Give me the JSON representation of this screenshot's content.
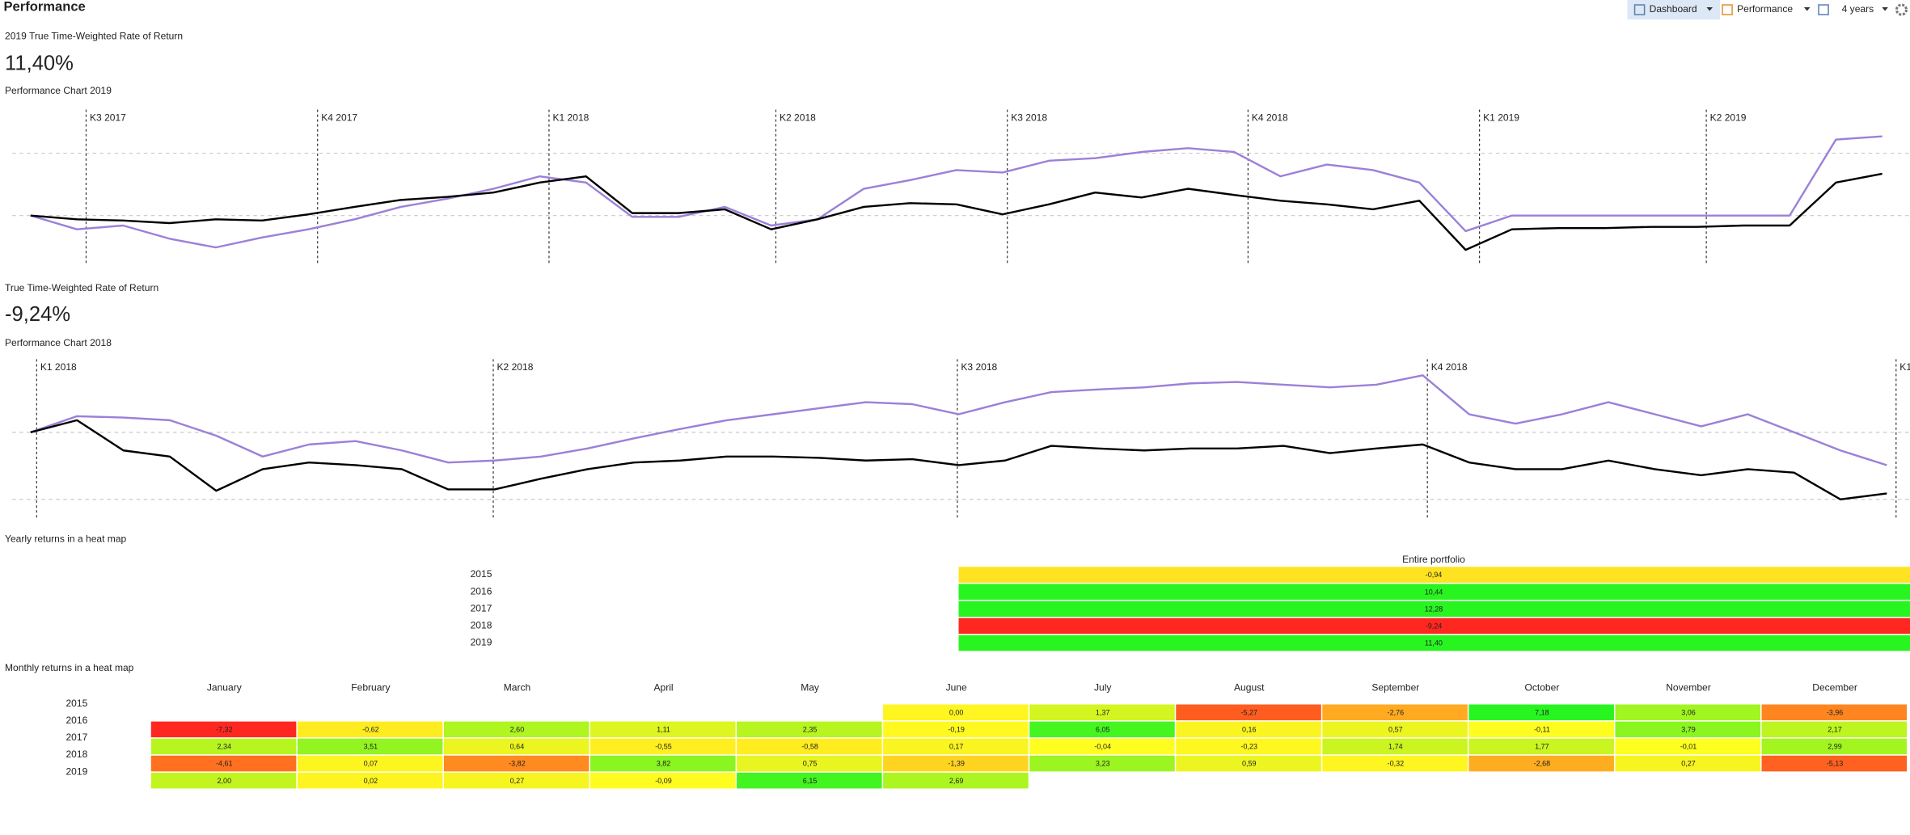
{
  "header": {
    "title": "Performance",
    "toolbar": [
      "Dashboard",
      "Performance",
      "4 years"
    ]
  },
  "summary_2019": {
    "label": "2019 True Time-Weighted Rate of Return",
    "value": "11,40%",
    "color": "#1e8a1e"
  },
  "summary_2018": {
    "label": "True Time-Weighted Rate of Return",
    "value": "-9,24%",
    "color": "#8b1010"
  },
  "chart_data": [
    {
      "type": "line",
      "title": "Performance Chart 2019",
      "x": [
        0,
        1,
        2,
        3,
        4,
        5,
        6,
        7,
        8,
        9,
        10,
        11,
        12,
        13,
        14,
        15,
        16,
        17,
        18,
        19,
        20,
        21,
        22,
        23,
        24,
        25,
        26,
        27,
        28,
        29,
        30,
        31,
        32,
        33,
        34,
        35,
        36,
        37,
        38,
        39,
        40
      ],
      "xlim": [
        -0.66,
        40.6
      ],
      "ylim": [
        -8,
        17
      ],
      "yticks": [
        0,
        10
      ],
      "xticks": [
        {
          "value": 1.2,
          "label": "K3 2017"
        },
        {
          "value": 6.2,
          "label": "K4 2017"
        },
        {
          "value": 11.2,
          "label": "K1 2018"
        },
        {
          "value": 16.1,
          "label": "K2 2018"
        },
        {
          "value": 21.1,
          "label": "K3 2018"
        },
        {
          "value": 26.3,
          "label": "K4 2018"
        },
        {
          "value": 31.3,
          "label": "K1 2019"
        },
        {
          "value": 36.2,
          "label": "K2 2019"
        }
      ],
      "series": [
        {
          "color": "#9b80d8",
          "values": [
            0,
            -2.2,
            -1.6,
            -3.7,
            -5.1,
            -3.5,
            -2.2,
            -0.6,
            1.4,
            2.7,
            4.3,
            6.3,
            5.3,
            -0.2,
            -0.2,
            1.4,
            -1.6,
            -0.6,
            4.3,
            5.7,
            7.3,
            6.9,
            8.8,
            9.2,
            10.2,
            10.8,
            10.2,
            6.3,
            8.2,
            7.3,
            5.3,
            -2.5,
            0,
            0,
            0,
            0,
            0,
            0,
            0,
            12.2,
            12.7
          ]
        },
        {
          "color": "#000000",
          "values": [
            0,
            -0.6,
            -0.8,
            -1.2,
            -0.6,
            -0.8,
            0.2,
            1.4,
            2.5,
            3,
            3.7,
            5.3,
            6.3,
            0.4,
            0.4,
            1,
            -2.2,
            -0.6,
            1.4,
            2,
            1.8,
            0.2,
            1.8,
            3.7,
            2.9,
            4.3,
            3.3,
            2.4,
            1.8,
            1,
            2.4,
            -5.5,
            -2.2,
            -2,
            -2,
            -1.8,
            -1.8,
            -1.6,
            -1.6,
            5.3,
            6.7
          ]
        }
      ]
    },
    {
      "type": "line",
      "title": "Performance Chart 2018",
      "x": [
        0,
        1,
        2,
        3,
        4,
        5,
        6,
        7,
        8,
        9,
        10,
        11,
        12,
        13,
        14,
        15,
        16,
        17,
        18,
        19,
        20,
        21,
        22,
        23,
        24,
        25,
        26,
        27,
        28,
        29,
        30,
        31,
        32,
        33,
        34,
        35,
        36,
        37,
        38,
        39,
        40
      ],
      "xlim": [
        -0.66,
        40.5
      ],
      "ylim": [
        -12.7,
        10.9
      ],
      "yticks": [
        0,
        -10
      ],
      "xticks": [
        {
          "value": 0.13,
          "label": "K1 2018"
        },
        {
          "value": 9.97,
          "label": "K2 2018"
        },
        {
          "value": 19.97,
          "label": "K3 2018"
        },
        {
          "value": 30.1,
          "label": "K4 2018"
        },
        {
          "value": 40.2,
          "label": "K1"
        }
      ],
      "series": [
        {
          "color": "#9b80d8",
          "values": [
            0,
            2.4,
            2.2,
            1.8,
            -0.5,
            -3.6,
            -1.8,
            -1.3,
            -2.7,
            -4.5,
            -4.2,
            -3.6,
            -2.4,
            -0.9,
            0.5,
            1.8,
            2.7,
            3.6,
            4.5,
            4.2,
            2.7,
            4.5,
            6,
            6.4,
            6.7,
            7.3,
            7.5,
            7.1,
            6.7,
            7.1,
            8.5,
            2.7,
            1.3,
            2.7,
            4.5,
            2.7,
            0.9,
            2.7,
            0,
            -2.7,
            -4.9
          ]
        },
        {
          "color": "#000000",
          "values": [
            0,
            1.8,
            -2.7,
            -3.6,
            -8.7,
            -5.5,
            -4.5,
            -4.9,
            -5.5,
            -8.5,
            -8.5,
            -6.9,
            -5.5,
            -4.5,
            -4.2,
            -3.6,
            -3.6,
            -3.8,
            -4.2,
            -4,
            -4.9,
            -4.2,
            -2,
            -2.4,
            -2.7,
            -2.4,
            -2.4,
            -2,
            -3.1,
            -2.4,
            -1.8,
            -4.5,
            -5.5,
            -5.5,
            -4.2,
            -5.5,
            -6.4,
            -5.5,
            -6,
            -10,
            -9.1
          ]
        }
      ]
    }
  ],
  "yearly_heatmap": {
    "title": "Yearly returns in a heat map",
    "column": "Entire portfolio",
    "rows": [
      {
        "year": 2015,
        "value": "-0,94"
      },
      {
        "year": 2016,
        "value": "10,44"
      },
      {
        "year": 2017,
        "value": "12,28"
      },
      {
        "year": 2018,
        "value": "-9,24"
      },
      {
        "year": 2019,
        "value": "11,40"
      }
    ]
  },
  "monthly_heatmap": {
    "title": "Monthly returns in a heat map",
    "months": [
      "January",
      "February",
      "March",
      "April",
      "May",
      "June",
      "July",
      "August",
      "September",
      "October",
      "November",
      "December"
    ],
    "rows": [
      {
        "year": 2015,
        "values": [
          null,
          null,
          null,
          null,
          null,
          "0,00",
          "1,37",
          "-5,27",
          "-2,76",
          "7,18",
          "3,06",
          "-3,96"
        ]
      },
      {
        "year": 2016,
        "values": [
          "-7,32",
          "-0,62",
          "2,60",
          "1,11",
          "2,35",
          "-0,19",
          "6,05",
          "0,16",
          "0,57",
          "-0,11",
          "3,79",
          "2,17"
        ]
      },
      {
        "year": 2017,
        "values": [
          "2,34",
          "3,51",
          "0,64",
          "-0,55",
          "-0,58",
          "0,17",
          "-0,04",
          "-0,23",
          "1,74",
          "1,77",
          "-0,01",
          "2,99"
        ]
      },
      {
        "year": 2018,
        "values": [
          "-4,61",
          "0,07",
          "-3,82",
          "3,82",
          "0,75",
          "-1,39",
          "3,23",
          "0,59",
          "-0,32",
          "-2,68",
          "0,27",
          "-5,13"
        ]
      },
      {
        "year": 2019,
        "values": [
          "2,00",
          "0,02",
          "0,27",
          "-0,09",
          "6,15",
          "2,69",
          null,
          null,
          null,
          null,
          null,
          null
        ]
      }
    ]
  }
}
